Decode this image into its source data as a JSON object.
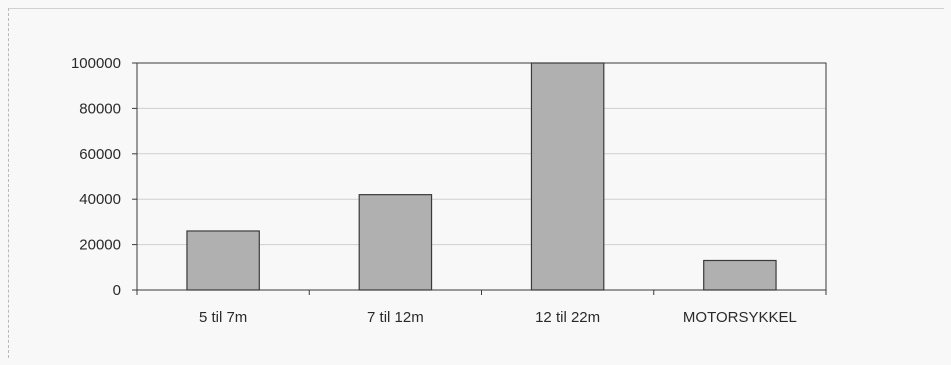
{
  "chart_data": {
    "type": "bar",
    "title": "",
    "xlabel": "",
    "ylabel": "",
    "categories": [
      "5 til 7m",
      "7 til 12m",
      "12 til 22m",
      "MOTORSYKKEL"
    ],
    "values": [
      26000,
      42000,
      100000,
      13000
    ],
    "ylim": [
      0,
      100000
    ],
    "yticks": [
      "0",
      "20000",
      "40000",
      "60000",
      "80000",
      "100000"
    ],
    "grid": true,
    "legend": "none",
    "colors": {
      "bar": "#b0b0b0",
      "bar_edge": "#3a3a3a",
      "grid": "#cfcfcf",
      "axis": "#3a3a3a"
    }
  }
}
